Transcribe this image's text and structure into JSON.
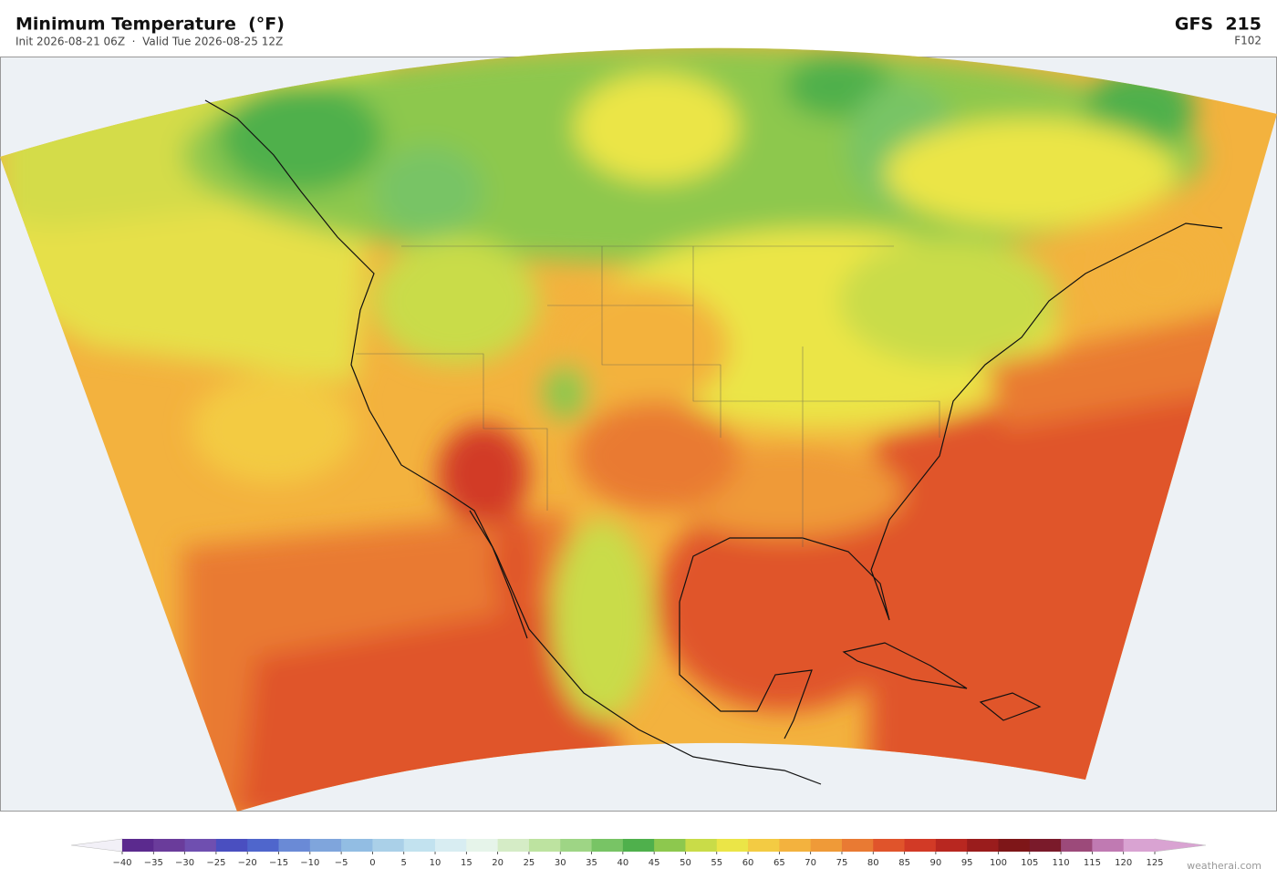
{
  "header": {
    "title": "Minimum Temperature  (°F)",
    "subtitle": "Init 2026-08-21 06Z  ·  Valid Tue 2026-08-25 12Z",
    "model": "GFS  215",
    "forecast_hour": "F102"
  },
  "colorbar": {
    "ticks": [
      {
        "value": -40,
        "label": "−40"
      },
      {
        "value": -35,
        "label": "−35"
      },
      {
        "value": -30,
        "label": "−30"
      },
      {
        "value": -25,
        "label": "−25"
      },
      {
        "value": -20,
        "label": "−20"
      },
      {
        "value": -15,
        "label": "−15"
      },
      {
        "value": -10,
        "label": "−10"
      },
      {
        "value": -5,
        "label": "−5"
      },
      0,
      5,
      10,
      15,
      20,
      25,
      30,
      35,
      40,
      45,
      50,
      55,
      60,
      65,
      70,
      75,
      80,
      85,
      90,
      95,
      100,
      105,
      110,
      115,
      120,
      125
    ],
    "colors": [
      "#5b2a8e",
      "#6a3c9b",
      "#6f4fb0",
      "#4a4fc0",
      "#4f66cc",
      "#6a8ad6",
      "#7fa5dc",
      "#92bde3",
      "#aad0e8",
      "#c2e2ef",
      "#d8edf2",
      "#e6f4ea",
      "#d5ecc6",
      "#bde3a0",
      "#9ed585",
      "#78c465",
      "#4fb04c",
      "#8dc84e",
      "#c9dc48",
      "#ebe547",
      "#f3cb43",
      "#f3b23e",
      "#ef9a38",
      "#e97a33",
      "#e0542b",
      "#d23a26",
      "#b82720",
      "#9a1c1c",
      "#7e1618",
      "#7a1a2a",
      "#9c4a7a",
      "#c07ab2",
      "#d9a3d2"
    ],
    "under_color": "#f2f0f7",
    "over_color": "#d9a3d2"
  },
  "footer": {
    "credit": "weatherai.com"
  }
}
